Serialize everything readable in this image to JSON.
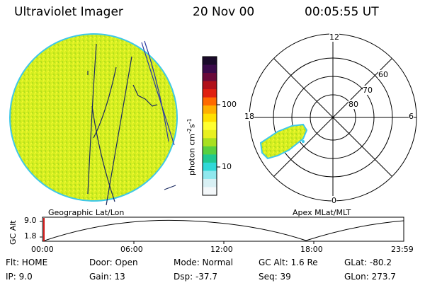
{
  "header": {
    "title": "Ultraviolet Imager",
    "date": "20 Nov 00",
    "time": "00:05:55 UT"
  },
  "colors": {
    "image_fill": "#d8f222",
    "globe_edge": "#3ec8e8",
    "track_red": "#d01818"
  },
  "colorbar": {
    "label": "photon cm",
    "label_exp1": "-2",
    "label_mid": "s",
    "label_exp2": "-1",
    "ticks": [
      "100",
      "10"
    ],
    "colors": [
      "#1a0a2a",
      "#3a0a4a",
      "#6a0a3a",
      "#b0101a",
      "#e02010",
      "#ff6a00",
      "#ffb000",
      "#ffe000",
      "#ffff30",
      "#e8f020",
      "#a8e020",
      "#58d040",
      "#20c890",
      "#30d8d8",
      "#90e8ee",
      "#d8f0f4",
      "#f4f8fa"
    ]
  },
  "polar": {
    "mlt_labels": [
      "12",
      "18",
      "6",
      "0"
    ],
    "lat_labels": [
      "60",
      "70",
      "80"
    ]
  },
  "captions": {
    "left": "Geographic Lat/Lon",
    "right": "Apex MLat/MLT"
  },
  "altitude_plot": {
    "ylabel": "GC Alt",
    "y_ticks": [
      "9.0",
      "1.8"
    ],
    "x_ticks": [
      "00:00",
      "06:00",
      "12:00",
      "18:00",
      "23:59"
    ]
  },
  "status": {
    "flt": "Flt: HOME",
    "ip": "IP:  9.0",
    "door": "Door: Open",
    "gain": "Gain: 13",
    "mode": "Mode: Normal",
    "dsp": "Dsp:  -37.7",
    "gc_alt": "GC Alt: 1.6 Re",
    "seq": "Seq: 39",
    "glat": "GLat: -80.2",
    "glon": "GLon: 273.7"
  }
}
